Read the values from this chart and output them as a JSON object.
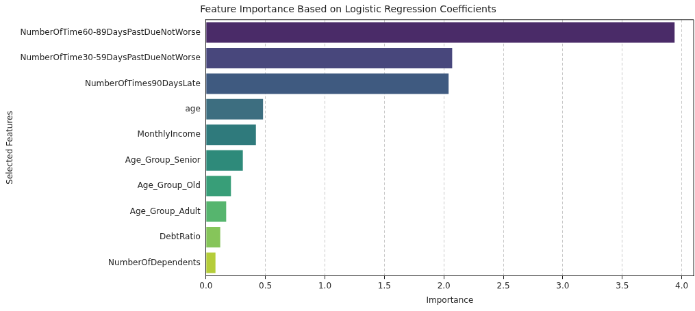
{
  "chart_data": {
    "type": "bar",
    "orientation": "horizontal",
    "title": "Feature Importance Based on Logistic Regression Coefficients",
    "xlabel": "Importance",
    "ylabel": "Selected Features",
    "categories": [
      "NumberOfTime60-89DaysPastDueNotWorse",
      "NumberOfTime30-59DaysPastDueNotWorse",
      "NumberOfTimes90DaysLate",
      "age",
      "MonthlyIncome",
      "Age_Group_Senior",
      "Age_Group_Old",
      "Age_Group_Adult",
      "DebtRatio",
      "NumberOfDependents"
    ],
    "values": [
      3.94,
      2.07,
      2.04,
      0.48,
      0.42,
      0.31,
      0.21,
      0.17,
      0.12,
      0.08
    ],
    "colors": [
      "#4a2b68",
      "#48477c",
      "#3f5a80",
      "#3d6e80",
      "#2f7a7c",
      "#2e8a7a",
      "#389e78",
      "#56b56e",
      "#86c55a",
      "#b5cd3a"
    ],
    "xlim": [
      0,
      4.1
    ],
    "xticks": [
      {
        "value": 0,
        "label": "0.0"
      },
      0.5,
      {
        "value": 1,
        "label": "1.0"
      },
      1.5,
      {
        "value": 2,
        "label": "2.0"
      },
      2.5,
      {
        "value": 3,
        "label": "3.0"
      },
      3.5,
      {
        "value": 4,
        "label": "4.0"
      }
    ],
    "grid": "x",
    "legend": false
  }
}
